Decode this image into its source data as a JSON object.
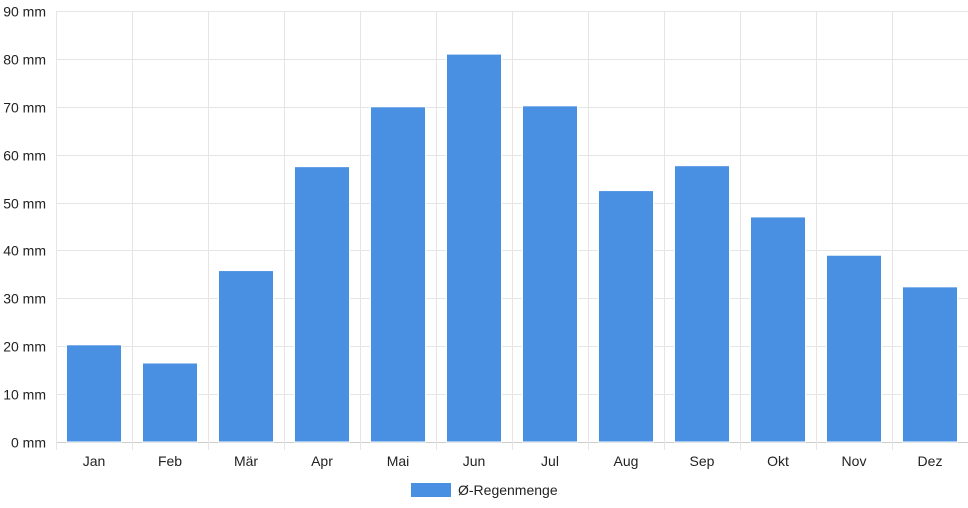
{
  "chart_data": {
    "type": "bar",
    "categories": [
      "Jan",
      "Feb",
      "Mär",
      "Apr",
      "Mai",
      "Jun",
      "Jul",
      "Aug",
      "Sep",
      "Okt",
      "Nov",
      "Dez"
    ],
    "series": [
      {
        "name": "Ø-Regenmenge",
        "values": [
          20.3,
          16.5,
          35.8,
          57.5,
          70.0,
          81.0,
          70.2,
          52.5,
          57.7,
          47.0,
          39.0,
          32.4
        ],
        "color": "#4a90e2"
      }
    ],
    "y_unit": "mm",
    "ylim": [
      0,
      90
    ],
    "y_ticks": [
      0,
      10,
      20,
      30,
      40,
      50,
      60,
      70,
      80,
      90
    ],
    "grid": true,
    "legend_position": "bottom"
  }
}
